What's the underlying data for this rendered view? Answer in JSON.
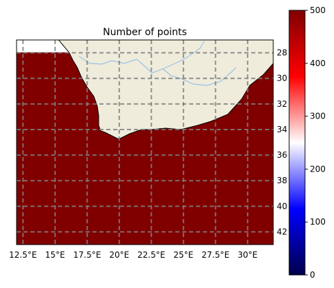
{
  "title": "Number of points",
  "map": {
    "lon_min": 12.0,
    "lon_max": 32.0,
    "lat_top": -27.0,
    "lat_bottom": -43.0,
    "ocean_value": 500,
    "land_color": "#efecdc",
    "river_color": "#9ac1e6",
    "grid_color": "#7f7f7f",
    "ocean_color": "#800000"
  },
  "gridlines": {
    "lons": [
      12.5,
      15,
      17.5,
      20,
      22.5,
      25,
      27.5,
      30
    ],
    "lats": [
      -28,
      -30,
      -32,
      -34,
      -36,
      -38,
      -40,
      -42
    ]
  },
  "x_tick_labels": [
    "12.5°E",
    "15°E",
    "17.5°E",
    "20°E",
    "22.5°E",
    "25°E",
    "27.5°E",
    "30°E"
  ],
  "y_tick_labels": [
    "28",
    "30",
    "32",
    "34",
    "36",
    "38",
    "40",
    "42"
  ],
  "colorbar": {
    "min": 0,
    "max": 500,
    "ticks": [
      "0",
      "100",
      "200",
      "300",
      "400",
      "500"
    ],
    "colormap": "seismic"
  }
}
